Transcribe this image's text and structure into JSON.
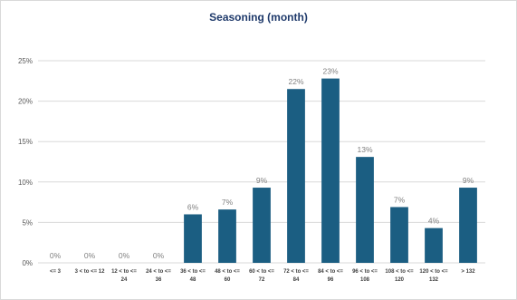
{
  "chart_data": {
    "type": "bar",
    "title": "Seasoning (month)",
    "xlabel": "",
    "ylabel": "",
    "ylim": [
      0,
      25
    ],
    "yticks": [
      "0%",
      "5%",
      "10%",
      "15%",
      "20%",
      "25%"
    ],
    "ytick_values": [
      0,
      5,
      10,
      15,
      20,
      25
    ],
    "grid": true,
    "legend": "none",
    "bar_color": "#1b5e82",
    "categories": [
      [
        "<= 3"
      ],
      [
        "3 < to <= 12"
      ],
      [
        "12 < to <=",
        "24"
      ],
      [
        "24 < to <=",
        "36"
      ],
      [
        "36 < to <=",
        "48"
      ],
      [
        "48 < to <=",
        "60"
      ],
      [
        "60 < to <=",
        "72"
      ],
      [
        "72 < to <=",
        "84"
      ],
      [
        "84 < to <=",
        "96"
      ],
      [
        "96 < to <=",
        "108"
      ],
      [
        "108 < to <=",
        "120"
      ],
      [
        "120 < to <=",
        "132"
      ],
      [
        "> 132"
      ]
    ],
    "values": [
      0,
      0,
      0,
      0,
      6.0,
      6.6,
      9.3,
      21.5,
      22.8,
      13.1,
      6.9,
      4.3,
      9.3
    ],
    "data_labels": [
      "0%",
      "0%",
      "0%",
      "0%",
      "6%",
      "7%",
      "9%",
      "22%",
      "23%",
      "13%",
      "7%",
      "4%",
      "9%"
    ]
  }
}
